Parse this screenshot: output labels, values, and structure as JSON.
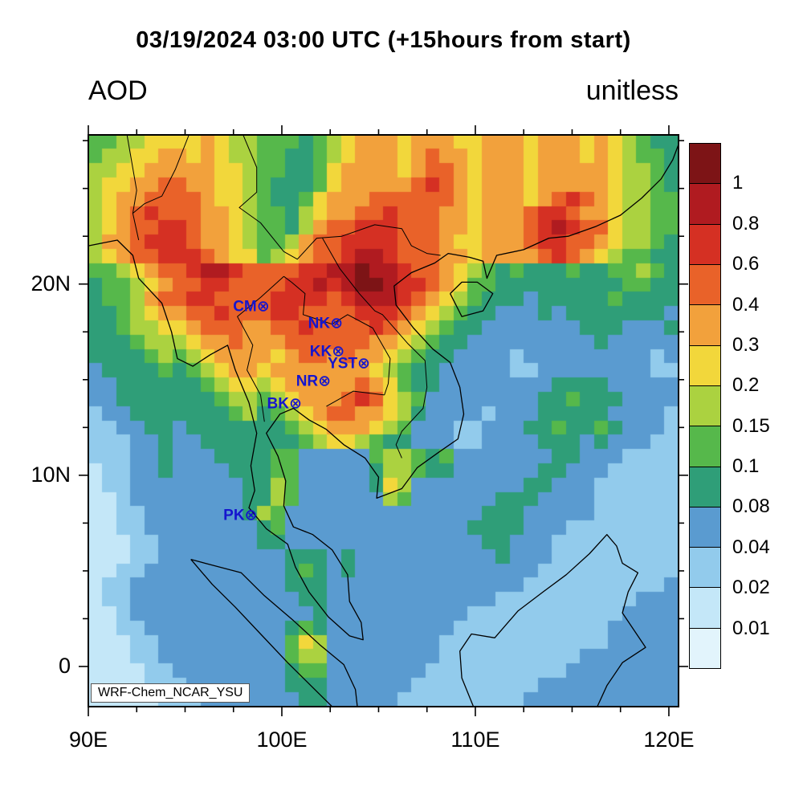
{
  "header": {
    "title": "03/19/2024 03:00 UTC (+15hours from start)",
    "left_label": "AOD",
    "right_label": "unitless"
  },
  "axes": {
    "x_ticks": [
      {
        "label": "90E",
        "lon": 90
      },
      {
        "label": "100E",
        "lon": 100
      },
      {
        "label": "110E",
        "lon": 110
      },
      {
        "label": "120E",
        "lon": 120
      }
    ],
    "y_ticks": [
      {
        "label": "20N",
        "lat": 20
      },
      {
        "label": "10N",
        "lat": 10
      },
      {
        "label": "0",
        "lat": 0
      }
    ],
    "minor_step": 2.5,
    "x_minor_from": 90,
    "x_minor_to": 120,
    "y_minor_from": 0,
    "y_minor_to": 27.5
  },
  "colorbar": {
    "boundary_labels": [
      "1",
      "0.8",
      "0.6",
      "0.4",
      "0.3",
      "0.2",
      "0.15",
      "0.1",
      "0.08",
      "0.04",
      "0.02",
      "0.01"
    ],
    "colors_top_to_bottom": [
      "#7D1416",
      "#B01B20",
      "#D53023",
      "#E96229",
      "#F2A13C",
      "#F2D73B",
      "#ABD240",
      "#56B84B",
      "#2F9E78",
      "#5A9BD0",
      "#92CBEC",
      "#C4E7F8",
      "#E2F4FC"
    ]
  },
  "map": {
    "corner_label": "WRF-Chem_NCAR_YSU",
    "extent": {
      "lon_min": 90,
      "lon_max": 120.5,
      "lat_min": -2.1,
      "lat_max": 27.8
    },
    "station_marker": "⊗",
    "station_color": "#1515CE",
    "coastlines": [
      [
        [
          90,
          22.0
        ],
        [
          91.5,
          22.3
        ],
        [
          92.3,
          21.5
        ],
        [
          92.6,
          20.3
        ],
        [
          93.8,
          19.0
        ],
        [
          94.3,
          17.5
        ],
        [
          94.6,
          16.1
        ],
        [
          95.4,
          15.7
        ],
        [
          96.3,
          16.3
        ],
        [
          97.2,
          16.8
        ],
        [
          97.6,
          15.5
        ],
        [
          98.3,
          13.8
        ],
        [
          98.7,
          12.2
        ],
        [
          98.4,
          10.5
        ],
        [
          98.6,
          9.2
        ],
        [
          98.3,
          8.3
        ],
        [
          99.2,
          7.2
        ],
        [
          100.3,
          6.4
        ],
        [
          100.7,
          5.2
        ],
        [
          101.4,
          3.9
        ],
        [
          102.4,
          2.6
        ],
        [
          103.5,
          1.6
        ],
        [
          104.2,
          1.4
        ],
        [
          104.1,
          2.3
        ],
        [
          103.5,
          3.4
        ],
        [
          103.4,
          4.8
        ],
        [
          102.6,
          6.1
        ],
        [
          101.6,
          6.9
        ],
        [
          100.6,
          7.3
        ],
        [
          100.1,
          8.4
        ],
        [
          100.2,
          9.7
        ],
        [
          99.8,
          11.0
        ],
        [
          99.2,
          12.2
        ],
        [
          99.9,
          13.2
        ],
        [
          100.6,
          13.5
        ],
        [
          101.4,
          12.9
        ],
        [
          102.3,
          12.4
        ],
        [
          103.2,
          11.6
        ],
        [
          104.3,
          10.9
        ],
        [
          105.0,
          9.9
        ],
        [
          104.9,
          8.8
        ],
        [
          106.2,
          9.3
        ],
        [
          107.0,
          10.4
        ],
        [
          108.1,
          11.2
        ],
        [
          109.1,
          11.9
        ],
        [
          109.4,
          13.2
        ],
        [
          109.2,
          14.6
        ],
        [
          108.7,
          15.9
        ],
        [
          107.8,
          16.6
        ],
        [
          106.8,
          17.7
        ],
        [
          105.9,
          18.9
        ],
        [
          105.8,
          19.9
        ],
        [
          106.7,
          20.6
        ],
        [
          107.9,
          21.1
        ],
        [
          108.6,
          21.6
        ],
        [
          109.7,
          21.4
        ],
        [
          110.4,
          21.2
        ],
        [
          110.6,
          20.3
        ],
        [
          111.1,
          21.5
        ],
        [
          112.5,
          21.8
        ],
        [
          113.8,
          22.4
        ],
        [
          114.8,
          22.5
        ],
        [
          116.2,
          23.0
        ],
        [
          117.5,
          23.6
        ],
        [
          118.6,
          24.5
        ],
        [
          119.6,
          25.5
        ],
        [
          120.2,
          26.5
        ],
        [
          120.5,
          27.3
        ]
      ],
      [
        [
          108.7,
          19.5
        ],
        [
          109.3,
          20.1
        ],
        [
          110.1,
          20.1
        ],
        [
          110.9,
          19.5
        ],
        [
          110.4,
          18.6
        ],
        [
          109.3,
          18.3
        ],
        [
          108.7,
          19.5
        ]
      ],
      [
        [
          95.3,
          5.6
        ],
        [
          96.4,
          4.3
        ],
        [
          97.6,
          3.1
        ],
        [
          98.9,
          1.7
        ],
        [
          100.3,
          0.2
        ],
        [
          101.4,
          -0.9
        ],
        [
          102.6,
          -2.1
        ],
        [
          103.9,
          -2.1
        ],
        [
          103.8,
          -1.2
        ],
        [
          103.2,
          0.1
        ],
        [
          102.0,
          1.1
        ],
        [
          100.6,
          2.4
        ],
        [
          99.1,
          3.7
        ],
        [
          97.9,
          4.9
        ],
        [
          96.4,
          5.3
        ],
        [
          95.3,
          5.6
        ]
      ],
      [
        [
          109.9,
          -2.1
        ],
        [
          109.3,
          -0.6
        ],
        [
          109.2,
          0.8
        ],
        [
          109.8,
          1.7
        ],
        [
          111.0,
          1.5
        ],
        [
          112.2,
          2.9
        ],
        [
          113.5,
          3.9
        ],
        [
          114.7,
          4.8
        ],
        [
          115.9,
          5.9
        ],
        [
          116.8,
          6.9
        ],
        [
          117.3,
          6.3
        ],
        [
          117.6,
          5.4
        ],
        [
          118.4,
          4.9
        ],
        [
          117.9,
          3.9
        ],
        [
          117.6,
          2.8
        ],
        [
          118.8,
          1.0
        ],
        [
          117.6,
          0.2
        ],
        [
          116.8,
          -1.0
        ],
        [
          116.3,
          -2.1
        ]
      ]
    ],
    "borders": [
      [
        [
          98.0,
          27.8
        ],
        [
          98.7,
          26.1
        ],
        [
          98.7,
          24.8
        ],
        [
          97.8,
          24.0
        ],
        [
          98.9,
          23.2
        ],
        [
          100.1,
          21.7
        ],
        [
          100.8,
          21.3
        ],
        [
          101.8,
          22.4
        ],
        [
          103.1,
          22.5
        ],
        [
          104.8,
          23.1
        ],
        [
          106.2,
          22.9
        ],
        [
          106.7,
          22.0
        ],
        [
          107.5,
          21.6
        ],
        [
          108.2,
          21.5
        ]
      ],
      [
        [
          100.1,
          20.4
        ],
        [
          98.9,
          19.3
        ],
        [
          97.7,
          18.3
        ],
        [
          98.5,
          16.8
        ],
        [
          98.2,
          15.5
        ],
        [
          98.9,
          14.2
        ],
        [
          99.1,
          12.8
        ]
      ],
      [
        [
          100.1,
          20.4
        ],
        [
          100.5,
          20.1
        ],
        [
          101.2,
          19.5
        ],
        [
          101.1,
          18.4
        ],
        [
          102.6,
          17.9
        ],
        [
          103.4,
          18.4
        ],
        [
          104.7,
          17.7
        ],
        [
          105.6,
          16.1
        ],
        [
          105.5,
          14.8
        ],
        [
          105.3,
          14.2
        ]
      ],
      [
        [
          102.3,
          13.6
        ],
        [
          103.7,
          14.4
        ],
        [
          105.3,
          14.2
        ]
      ],
      [
        [
          102.1,
          22.4
        ],
        [
          103.0,
          20.8
        ],
        [
          104.0,
          19.5
        ],
        [
          104.8,
          18.6
        ],
        [
          105.2,
          18.4
        ],
        [
          106.5,
          16.9
        ],
        [
          107.4,
          16.0
        ],
        [
          107.5,
          14.6
        ],
        [
          107.3,
          13.5
        ],
        [
          106.2,
          12.3
        ],
        [
          105.9,
          11.6
        ],
        [
          106.2,
          10.9
        ]
      ],
      [
        [
          95.2,
          27.8
        ],
        [
          94.5,
          26.0
        ],
        [
          93.8,
          24.6
        ],
        [
          92.9,
          24.2
        ],
        [
          92.3,
          23.7
        ],
        [
          92.6,
          22.3
        ]
      ],
      [
        [
          92.0,
          27.8
        ],
        [
          92.5,
          24.9
        ],
        [
          92.3,
          23.7
        ]
      ]
    ]
  },
  "chart_data": {
    "type": "heatmap",
    "title": "03/19/2024 03:00 UTC (+15hours from start)",
    "variable": "AOD",
    "units": "unitless",
    "model_label": "WRF-Chem_NCAR_YSU",
    "lon_range": [
      90,
      120.5
    ],
    "lat_range": [
      -2.1,
      27.8
    ],
    "levels": [
      0.01,
      0.02,
      0.04,
      0.08,
      0.1,
      0.15,
      0.2,
      0.3,
      0.4,
      0.6,
      0.8,
      1
    ],
    "palette_low_to_high": [
      "#E2F4FC",
      "#C4E7F8",
      "#92CBEC",
      "#5A9BD0",
      "#2F9E78",
      "#56B84B",
      "#ABD240",
      "#F2D73B",
      "#F2A13C",
      "#E96229",
      "#D53023",
      "#B01B20",
      "#7D1416"
    ],
    "grid_encoding": "40 rows top(27.8N) to bottom(-2.1S), 42 cols west(90E) to east(120.5E); char 0-9,A-C indexes palette_low_to_high (band index of AOD level)",
    "grid_rows": 40,
    "grid_cols": 42,
    "grid": [
      "556677778766555456788878887788878887876544",
      "566778878766554456788878988788878887876554",
      "667788888776554457888878998788878888876654",
      "677889988776544457888889A98788878888876654",
      "6788999987765445788899999987888789A9876655",
      "6789A9998876554678899A9998878889AA98876655",
      "67899AA988765546899AAA9998878889ABA9976655",
      "6889AAA98876556899AAAA9998778889AA99876654",
      "67899AAA9877567899ABBA99988788889A98765544",
      "5567899ABBA9999AABBCBBA9987654544454455654",
      "45567899AA9999AABABCCBAA987554444444445544",
      "4556899AA9999AAAA9ABBBA9876544434444454444",
      "445678899A999AA9999AAA98765443334344444443",
      "445667789998899A9999A987654433333334443334",
      "444566678898889999998876544333333333433333",
      "444456567888878998988765443333233333333323",
      "344445456788788888887654433333223333333322",
      "334444445677678888898754433333333444433333",
      "3344444445665678889A9765333333334454443333",
      "233444444456456789988764333323334444433332",
      "223344344444445678887653332233344544543332",
      "222334334444444567765443332233334443433322",
      "222334333444455333335665453333333443332222",
      "122334333344455333334665443333334433322222",
      "122333333334465333334763333333344333222222",
      "112333333334465333333653333334443333222222",
      "112233333334653333333333333344433333222222",
      "112233333333453333333333333444433322222222",
      "111223333333443333333333333344333222222222",
      "111223333333334443433333333334333222222222",
      "112233333333334543433333333333332222222222",
      "122333333333334443333333333333322222222223",
      "122333333333333443333333333332222222222333",
      "112333333333333343333333333222222222223333",
      "112233333333334543333333332222222222233333",
      "111223333333335763333333322222222222233333",
      "111223333333335663333333322222222223333333",
      "111122333333334553333333222222222233333333",
      "111122233333334443333332222222223333333333",
      "111112223333333443333322222222233333333333"
    ],
    "stations": [
      {
        "id": "CM",
        "lon": 98.95,
        "lat": 18.78
      },
      {
        "id": "NK",
        "lon": 102.74,
        "lat": 17.87
      },
      {
        "id": "KK",
        "lon": 102.83,
        "lat": 16.43
      },
      {
        "id": "YST",
        "lon": 104.15,
        "lat": 15.79
      },
      {
        "id": "NR",
        "lon": 102.12,
        "lat": 14.88
      },
      {
        "id": "BK",
        "lon": 100.62,
        "lat": 13.67
      },
      {
        "id": "PK",
        "lon": 98.32,
        "lat": 7.87
      }
    ]
  }
}
